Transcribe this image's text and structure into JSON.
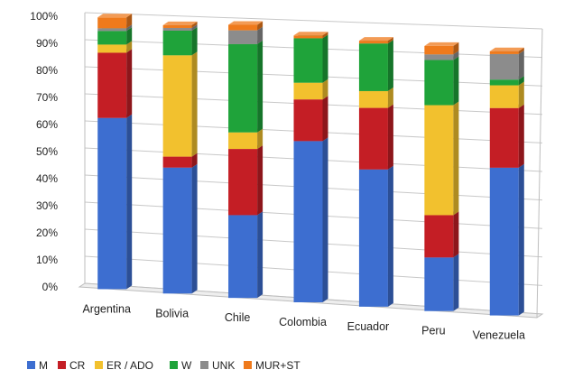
{
  "chart_data": {
    "type": "bar",
    "stacked": true,
    "orientation": "vertical",
    "style": "3d-perspective",
    "categories": [
      "Argentina",
      "Bolivia",
      "Chile",
      "Colombia",
      "Ecuador",
      "Peru",
      "Venezuela"
    ],
    "series": [
      {
        "name": "M",
        "color": "#3d6ed0",
        "values": [
          63,
          46,
          30,
          58,
          49,
          19,
          52
        ]
      },
      {
        "name": "CR",
        "color": "#c41e25",
        "values": [
          24,
          4,
          24,
          15,
          22,
          15,
          21
        ]
      },
      {
        "name": "ER / ADO",
        "color": "#f2c12e",
        "values": [
          3,
          37,
          6,
          6,
          6,
          39,
          8
        ]
      },
      {
        "name": "W",
        "color": "#1fa33a",
        "values": [
          5,
          9,
          32,
          16,
          17,
          16,
          2
        ]
      },
      {
        "name": "UNK",
        "color": "#8c8c8c",
        "values": [
          1,
          1,
          5,
          0,
          0,
          2,
          9
        ]
      },
      {
        "name": "MUR+ST",
        "color": "#ef7a1c",
        "values": [
          4,
          1,
          2,
          1,
          1,
          3,
          1
        ]
      }
    ],
    "ylim": [
      0,
      100
    ],
    "yticks": [
      "0%",
      "10%",
      "20%",
      "30%",
      "40%",
      "50%",
      "60%",
      "70%",
      "80%",
      "90%",
      "100%"
    ],
    "xlabel": "",
    "ylabel": "",
    "title": "",
    "grid": true,
    "legend": "bottom-left"
  }
}
